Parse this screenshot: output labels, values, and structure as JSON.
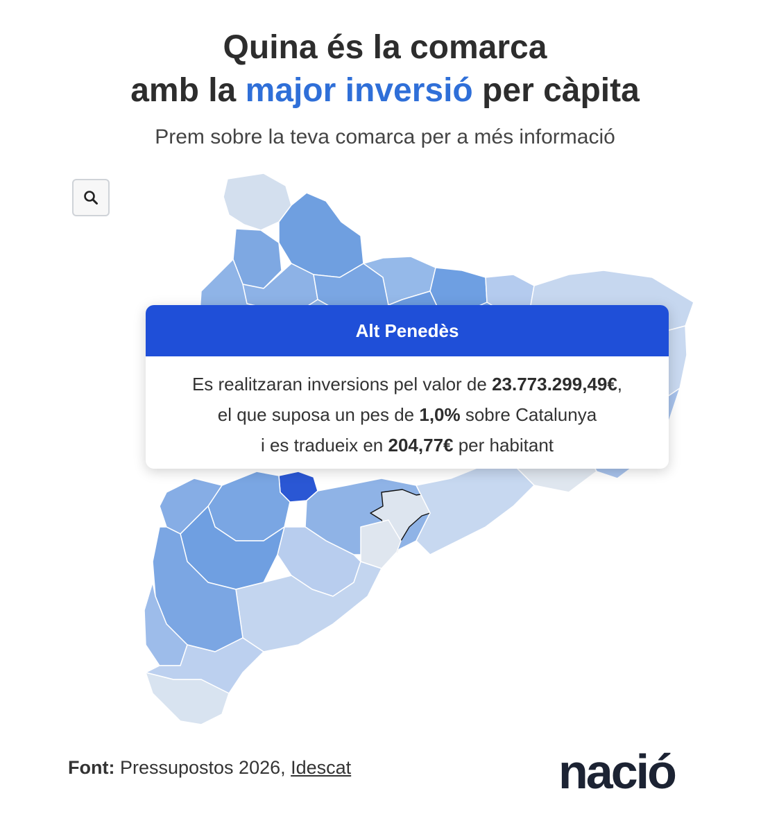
{
  "header": {
    "title_line1": "Quina és la comarca",
    "title_line2_pre": "amb la ",
    "title_line2_hl": "major inversió",
    "title_line2_post": " per càpita",
    "subtitle": "Prem sobre la teva comarca per a més informació"
  },
  "map": {
    "zoom_icon": "search-icon",
    "highlight_color": "#2f6fd8",
    "selected_region": "Alt Penedès"
  },
  "tooltip": {
    "title": "Alt Penedès",
    "line1_pre": "Es realitzaran inversions pel valor de ",
    "line1_value": "23.773.299,49€",
    "line1_post": ",",
    "line2_pre": "el que suposa un pes de ",
    "line2_value": "1,0%",
    "line2_post": " sobre Catalunya",
    "line3_pre": "i es tradueix en ",
    "line3_value": "204,77€",
    "line3_post": " per habitant",
    "header_color": "#1f4fd8"
  },
  "footer": {
    "source_label": "Font:",
    "source_text": " Pressupostos 2026, ",
    "source_link": "Idescat",
    "logo": "nació"
  }
}
